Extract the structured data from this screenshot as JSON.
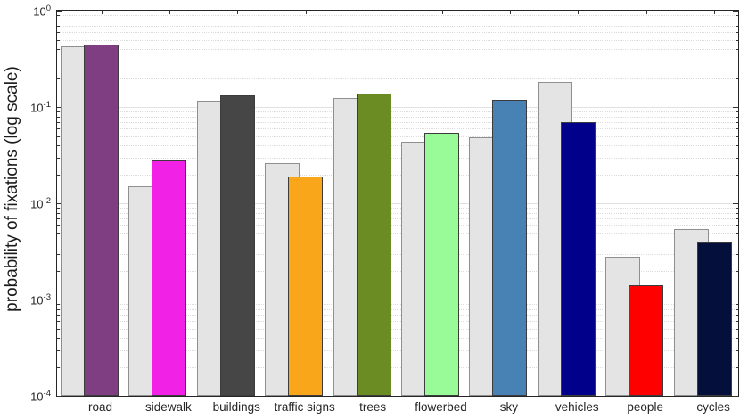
{
  "chart_data": {
    "type": "bar",
    "title": "",
    "xlabel": "",
    "ylabel": "probability of fixations (log scale)",
    "yscale": "log",
    "ylim": [
      0.0001,
      1
    ],
    "ytick_exponents": [
      0,
      -1,
      -2,
      -3,
      -4
    ],
    "grid": "horizontal: solid light lines at decades, dotted light lines at log minor ticks",
    "legend": "none",
    "bar_style": "two bars per category; light-gray bar behind-left, colored bar in front overlapping its right side",
    "categories": [
      "road",
      "sidewalk",
      "buildings",
      "traffic signs",
      "trees",
      "flowerbed",
      "sky",
      "vehicles",
      "people",
      "cycles"
    ],
    "series": [
      {
        "name": "gray",
        "color": "#e4e4e4",
        "edge_color": "#8f8f8f",
        "values": [
          0.43,
          0.015,
          0.115,
          0.026,
          0.124,
          0.044,
          0.049,
          0.18,
          0.0028,
          0.0054
        ]
      },
      {
        "name": "colored",
        "edge_color": "#3c3c3c",
        "colors": [
          "#7f3e81",
          "#f122e6",
          "#464646",
          "#f9a61b",
          "#6a8c23",
          "#98fb98",
          "#4881b3",
          "#00008b",
          "#ff0000",
          "#050f3c"
        ],
        "values": [
          0.445,
          0.028,
          0.133,
          0.019,
          0.138,
          0.054,
          0.119,
          0.07,
          0.0014,
          0.0039
        ]
      }
    ],
    "axis_color": "#262626",
    "background_color": "#ffffff"
  }
}
